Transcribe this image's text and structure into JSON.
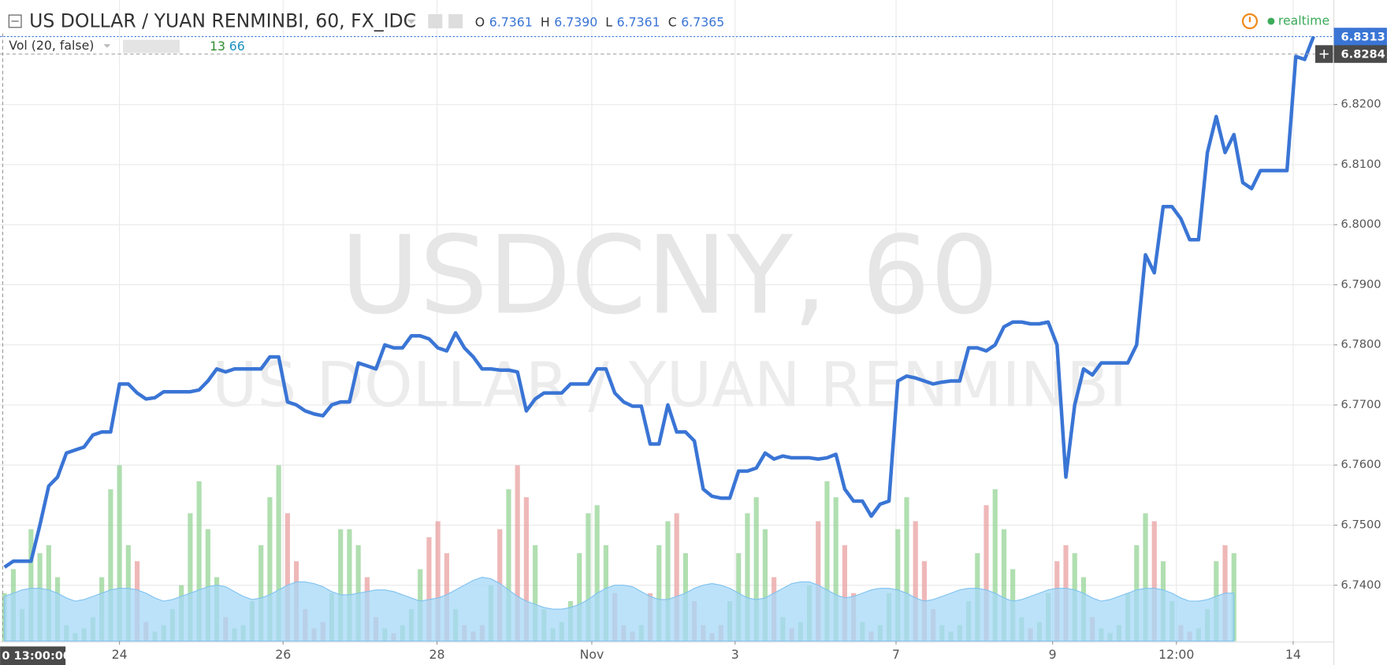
{
  "chart_data": {
    "type": "line",
    "title": "US DOLLAR / YUAN RENMINBI, 60, FX_IDC",
    "watermark": "USDCNY, 60",
    "watermark_subtitle": "US DOLLAR / YUAN RENMINBI",
    "ohlc": [
      {
        "key": "O",
        "value": "6.7361"
      },
      {
        "key": "H",
        "value": "6.7390"
      },
      {
        "key": "L",
        "value": "6.7361"
      },
      {
        "key": "C",
        "value": "6.7365"
      }
    ],
    "status": "realtime",
    "volume_legend": {
      "label": "Vol (20, false)",
      "values": [
        "13",
        "66"
      ]
    },
    "crosshair_time": "0 13:00:00",
    "crosshair_price": {
      "value": 6.8284,
      "label": "6.8284"
    },
    "last_price": {
      "value": 6.8313,
      "label": "6.8313"
    },
    "xlim": [
      -0.5,
      150.3
    ],
    "xticks": [
      {
        "value": 13,
        "label": "24"
      },
      {
        "value": 31.5,
        "label": "26"
      },
      {
        "value": 48.9,
        "label": "28"
      },
      {
        "value": 66.4,
        "label": "Nov"
      },
      {
        "value": 82.6,
        "label": "3"
      },
      {
        "value": 100.8,
        "label": "7"
      },
      {
        "value": 118.5,
        "label": "9"
      },
      {
        "value": 132.5,
        "label": "12:00"
      },
      {
        "value": 145.7,
        "label": "14"
      }
    ],
    "ylim": [
      6.7307,
      6.8318
    ],
    "yticks": [
      {
        "value": 6.74,
        "label": "6.7400"
      },
      {
        "value": 6.75,
        "label": "6.7500"
      },
      {
        "value": 6.76,
        "label": "6.7600"
      },
      {
        "value": 6.77,
        "label": "6.7700"
      },
      {
        "value": 6.78,
        "label": "6.7800"
      },
      {
        "value": 6.79,
        "label": "6.7900"
      },
      {
        "value": 6.8,
        "label": "6.8000"
      },
      {
        "value": 6.81,
        "label": "6.8100"
      },
      {
        "value": 6.82,
        "label": "6.8200"
      }
    ],
    "y2lim": [
      0,
      380
    ],
    "grid": true,
    "up_color": "#8fd18f",
    "down_color": "#e89a9a",
    "series": [
      {
        "color": "#3a75d5",
        "values": [
          6.743,
          6.744,
          6.744,
          6.744,
          6.75,
          6.7565,
          6.758,
          6.762,
          6.7625,
          6.763,
          6.765,
          6.7655,
          6.7655,
          6.7735,
          6.7735,
          6.772,
          6.771,
          6.7712,
          6.7722,
          6.7722,
          6.7722,
          6.7722,
          6.7725,
          6.774,
          6.776,
          6.7755,
          6.776,
          6.776,
          6.776,
          6.776,
          6.778,
          6.778,
          6.7705,
          6.77,
          6.769,
          6.7685,
          6.7682,
          6.77,
          6.7705,
          6.7705,
          6.777,
          6.7765,
          6.776,
          6.78,
          6.7795,
          6.7795,
          6.7815,
          6.7815,
          6.781,
          6.7795,
          6.779,
          6.782,
          6.7795,
          6.778,
          6.776,
          6.776,
          6.7758,
          6.7758,
          6.7755,
          6.769,
          6.771,
          6.772,
          6.772,
          6.772,
          6.7735,
          6.7735,
          6.7735,
          6.776,
          6.776,
          6.772,
          6.7705,
          6.7698,
          6.7698,
          6.7635,
          6.7635,
          6.77,
          6.7655,
          6.7655,
          6.764,
          6.756,
          6.7548,
          6.7545,
          6.7545,
          6.759,
          6.759,
          6.7595,
          6.762,
          6.761,
          6.7615,
          6.7612,
          6.7612,
          6.7612,
          6.761,
          6.7612,
          6.7618,
          6.756,
          6.754,
          6.754,
          6.7515,
          6.7535,
          6.754,
          6.774,
          6.7748,
          6.7745,
          6.774,
          6.7735,
          6.7738,
          6.774,
          6.774,
          6.7795,
          6.7795,
          6.779,
          6.78,
          6.783,
          6.7838,
          6.7838,
          6.7835,
          6.7835,
          6.7838,
          6.78,
          6.758,
          6.77,
          6.776,
          6.775,
          6.777,
          6.777,
          6.777,
          6.777,
          6.78,
          6.795,
          6.792,
          6.803,
          6.803,
          6.801,
          6.7975,
          6.7975,
          6.812,
          6.818,
          6.812,
          6.815,
          6.807,
          6.806,
          6.809,
          6.809,
          6.809,
          6.809,
          6.828,
          6.8275,
          6.8313
        ]
      },
      {
        "type": "bar",
        "axis": "y2",
        "values": [
          30,
          45,
          20,
          70,
          55,
          60,
          40,
          10,
          5,
          8,
          15,
          40,
          95,
          110,
          60,
          50,
          12,
          6,
          10,
          20,
          35,
          80,
          100,
          70,
          40,
          15,
          8,
          10,
          25,
          60,
          90,
          110,
          80,
          50,
          20,
          8,
          12,
          30,
          70,
          70,
          60,
          40,
          15,
          8,
          5,
          10,
          20,
          45,
          65,
          75,
          55,
          20,
          10,
          6,
          10,
          35,
          70,
          95,
          110,
          90,
          60,
          20,
          8,
          12,
          25,
          55,
          80,
          85,
          60,
          30,
          10,
          6,
          10,
          30,
          60,
          75,
          80,
          55,
          25,
          10,
          5,
          10,
          25,
          55,
          80,
          90,
          70,
          40,
          15,
          8,
          12,
          35,
          75,
          100,
          90,
          60,
          30,
          12,
          6,
          10,
          30,
          70,
          90,
          75,
          50,
          20,
          10,
          6,
          10,
          25,
          55,
          85,
          95,
          70,
          45,
          15,
          8,
          12,
          30,
          50,
          60,
          55,
          40,
          15,
          8,
          5,
          10,
          30,
          60,
          80,
          75,
          50,
          25,
          10,
          6,
          8,
          20,
          50,
          60,
          55
        ]
      },
      {
        "type": "area",
        "axis": "y2",
        "color": "#a6d8f8",
        "values": [
          28,
          30,
          32,
          33,
          33,
          32,
          30,
          27,
          25,
          26,
          28,
          30,
          32,
          33,
          33,
          32,
          30,
          27,
          25,
          26,
          28,
          30,
          32,
          34,
          35,
          34,
          31,
          28,
          26,
          27,
          29,
          32,
          35,
          37,
          37,
          36,
          34,
          31,
          29,
          29,
          30,
          31,
          32,
          32,
          31,
          29,
          27,
          25,
          26,
          27,
          29,
          32,
          35,
          38,
          40,
          39,
          36,
          32,
          28,
          25,
          23,
          21,
          20,
          20,
          21,
          23,
          26,
          30,
          33,
          35,
          35,
          34,
          31,
          28,
          26,
          26,
          28,
          30,
          33,
          35,
          36,
          35,
          33,
          30,
          27,
          26,
          27,
          30,
          33,
          36,
          37,
          37,
          35,
          32,
          29,
          27,
          28,
          30,
          32,
          33,
          33,
          32,
          30,
          27,
          25,
          26,
          28,
          30,
          32,
          33,
          33,
          32,
          30,
          27,
          25,
          26,
          28,
          30,
          32,
          33,
          33,
          32,
          30,
          27,
          25,
          26,
          28,
          30,
          32,
          33,
          33,
          32,
          30,
          27,
          25,
          25,
          26,
          28,
          30,
          30
        ]
      }
    ]
  }
}
